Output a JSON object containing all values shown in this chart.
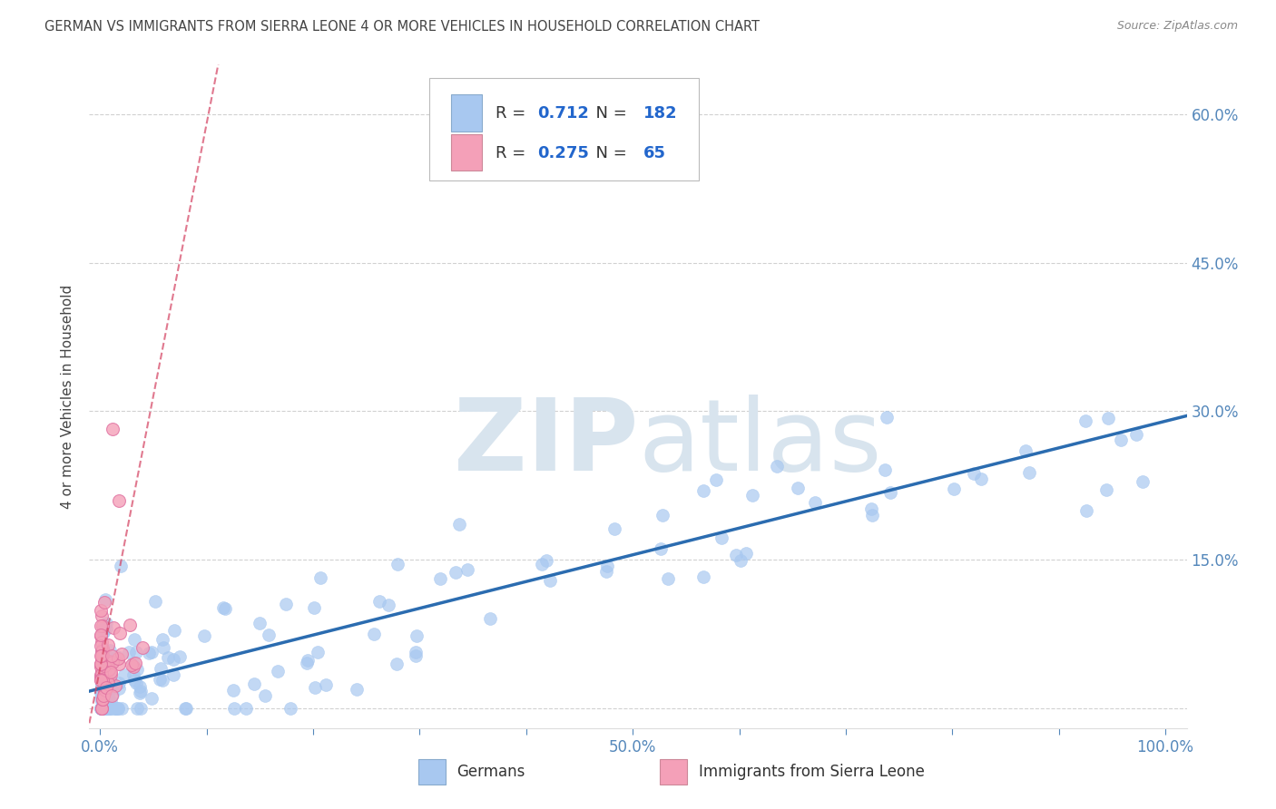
{
  "title": "GERMAN VS IMMIGRANTS FROM SIERRA LEONE 4 OR MORE VEHICLES IN HOUSEHOLD CORRELATION CHART",
  "source": "Source: ZipAtlas.com",
  "ylabel": "4 or more Vehicles in Household",
  "german_R": 0.712,
  "german_N": 182,
  "sierra_leone_R": 0.275,
  "sierra_leone_N": 65,
  "german_color": "#a8c8f0",
  "german_edge_color": "#7aaed0",
  "german_line_color": "#2b6cb0",
  "sierra_leone_color": "#f4a0b8",
  "sierra_leone_edge_color": "#e070a0",
  "sierra_leone_line_color": "#d44060",
  "watermark_color": "#d8e4ee",
  "background_color": "#ffffff",
  "grid_color": "#cccccc",
  "title_color": "#444444",
  "axis_color": "#5588bb",
  "legend_R_N_color": "#2266cc",
  "legend_text_color": "#333333"
}
